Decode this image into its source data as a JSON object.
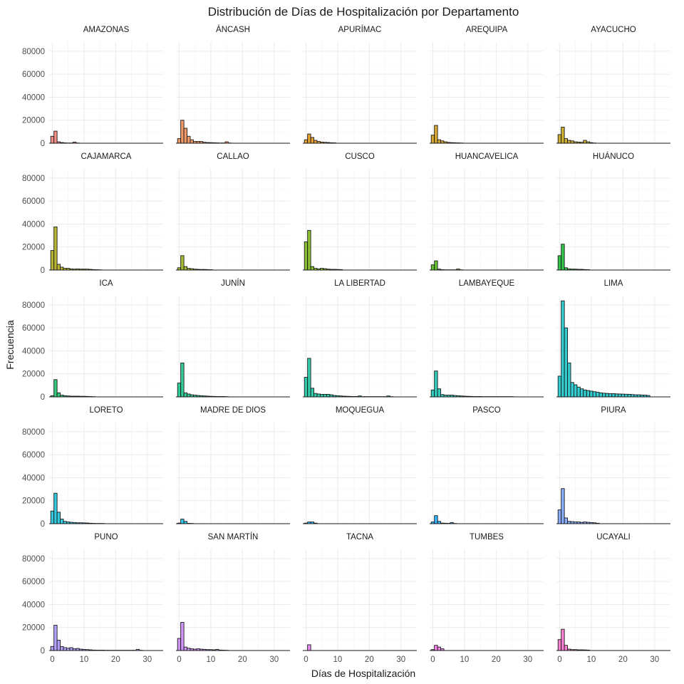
{
  "chart_data": {
    "type": "bar",
    "title": "Distribución de Días de Hospitalización por Departamento",
    "xlabel": "Días de Hospitalización",
    "ylabel": "Frecuencia",
    "xlim": [
      -1,
      35
    ],
    "ylim": [
      0,
      88000
    ],
    "x_ticks": [
      0,
      10,
      20,
      30
    ],
    "y_ticks": [
      0,
      20000,
      40000,
      60000,
      80000
    ],
    "y_tick_labels": [
      "0",
      "20000",
      "40000",
      "60000",
      "80000"
    ],
    "bin_width": 1,
    "bin_start": 0,
    "grid": true,
    "legend": "none",
    "panels": [
      {
        "name": "AMAZONAS",
        "color": "#F8766D",
        "values": [
          6000,
          10500,
          1200,
          600,
          300,
          200,
          200,
          1000,
          200
        ]
      },
      {
        "name": "ÁNCASH",
        "color": "#EE8044",
        "values": [
          4000,
          20000,
          13000,
          6000,
          3000,
          1500,
          1500,
          1500,
          800,
          600,
          500,
          400,
          300,
          200,
          200,
          1200,
          200
        ]
      },
      {
        "name": "APURÍMAC",
        "color": "#E18A00",
        "values": [
          3000,
          8000,
          5000,
          2500,
          1500,
          1000,
          800,
          600,
          400,
          300
        ]
      },
      {
        "name": "AREQUIPA",
        "color": "#D09400",
        "values": [
          7000,
          15500,
          3000,
          2000,
          1200,
          700,
          500,
          400,
          300,
          200
        ]
      },
      {
        "name": "AYACUCHO",
        "color": "#BE9C00",
        "values": [
          7500,
          14000,
          4000,
          2500,
          2000,
          1200,
          1000,
          800,
          2500,
          1200,
          500,
          200
        ]
      },
      {
        "name": "CAJAMARCA",
        "color": "#A8A400",
        "values": [
          17000,
          37500,
          5000,
          2500,
          1500,
          1500,
          1000,
          800,
          1000,
          800,
          800,
          800,
          600,
          400,
          300,
          200
        ]
      },
      {
        "name": "CALLAO",
        "color": "#8FAA00",
        "values": [
          2000,
          12500,
          3000,
          1500,
          1200,
          800,
          600,
          500,
          500,
          400,
          300
        ]
      },
      {
        "name": "CUSCO",
        "color": "#6FB000",
        "values": [
          24500,
          34500,
          3000,
          1500,
          1000,
          1500,
          1200,
          800,
          600,
          600,
          500,
          400
        ]
      },
      {
        "name": "HUANCAVELICA",
        "color": "#3DB400",
        "values": [
          4500,
          8000,
          800,
          300,
          200,
          200,
          200,
          200,
          900,
          200
        ]
      },
      {
        "name": "HUÁNUCO",
        "color": "#00B81F",
        "values": [
          12500,
          22500,
          2000,
          1000,
          800,
          800,
          600,
          600,
          400,
          300
        ]
      },
      {
        "name": "ICA",
        "color": "#00BB5A",
        "values": [
          1000,
          15000,
          3500,
          1500,
          1000,
          800,
          600,
          600,
          600,
          500,
          500,
          400,
          300,
          200
        ]
      },
      {
        "name": "JUNÍN",
        "color": "#00BE7D",
        "values": [
          12000,
          29500,
          3500,
          2500,
          1800,
          1500,
          1200,
          1000,
          800,
          600,
          500,
          400,
          300,
          300,
          300,
          200
        ]
      },
      {
        "name": "LA LIBERTAD",
        "color": "#00BF98",
        "values": [
          17000,
          33500,
          7500,
          3000,
          2500,
          2200,
          2200,
          2200,
          1800,
          1200,
          1000,
          800,
          600,
          500,
          400,
          300,
          300,
          800,
          200,
          200,
          200,
          200,
          200,
          200,
          200,
          200,
          800,
          200
        ]
      },
      {
        "name": "LAMBAYEQUE",
        "color": "#00C0AE",
        "values": [
          6000,
          22500,
          7000,
          2000,
          1500,
          1500,
          1500,
          1200,
          1000,
          800,
          600,
          500,
          400,
          300,
          300,
          300,
          200,
          200,
          200,
          200,
          200,
          200,
          200,
          200,
          200,
          200
        ]
      },
      {
        "name": "LIMA",
        "color": "#00BFC4",
        "values": [
          18000,
          83500,
          60000,
          29500,
          12500,
          10500,
          8500,
          7000,
          6000,
          5500,
          5000,
          4500,
          4000,
          3500,
          3200,
          3000,
          2800,
          2800,
          2600,
          2500,
          2400,
          2300,
          2200,
          2000,
          1800,
          1800,
          1600,
          1500,
          1200
        ]
      },
      {
        "name": "LORETO",
        "color": "#00BBDA",
        "values": [
          11000,
          26500,
          10000,
          4000,
          2000,
          1500,
          1200,
          1000,
          800,
          800,
          700,
          600,
          400,
          300,
          200,
          200,
          200
        ]
      },
      {
        "name": "MADRE DE DIOS",
        "color": "#00B6EB",
        "values": [
          500,
          4000,
          2000,
          300,
          200
        ]
      },
      {
        "name": "MOQUEGUA",
        "color": "#00ADF9",
        "values": [
          500,
          1500,
          1500,
          500
        ]
      },
      {
        "name": "PASCO",
        "color": "#00A3FF",
        "values": [
          1500,
          7000,
          2000,
          500,
          400,
          300,
          1000,
          200
        ]
      },
      {
        "name": "PIURA",
        "color": "#6B98FF",
        "values": [
          12000,
          30500,
          5000,
          2000,
          1800,
          1500,
          1500,
          1200,
          1500,
          1200,
          1000,
          800,
          400
        ]
      },
      {
        "name": "PUNO",
        "color": "#A18AFF",
        "values": [
          3500,
          22000,
          9000,
          3500,
          2500,
          2000,
          2500,
          1500,
          1800,
          1200,
          1000,
          800,
          600,
          400,
          300,
          300,
          300,
          200,
          200,
          200,
          200,
          200,
          200,
          200,
          200,
          200,
          200,
          1000,
          200
        ]
      },
      {
        "name": "SAN MARTÍN",
        "color": "#C77CFF",
        "values": [
          10500,
          24500,
          3000,
          2000,
          1500,
          1200,
          1500,
          1200,
          1000,
          800,
          800,
          600,
          1000,
          400,
          300,
          200
        ]
      },
      {
        "name": "TACNA",
        "color": "#E46BF1",
        "values": [
          0,
          5000
        ]
      },
      {
        "name": "TUMBES",
        "color": "#F563E3",
        "values": [
          800,
          4500,
          3000,
          1500
        ]
      },
      {
        "name": "UCAYALI",
        "color": "#FF61C9",
        "values": [
          9500,
          18500,
          4500,
          1200,
          800,
          800,
          600,
          600,
          500,
          400
        ]
      }
    ]
  }
}
